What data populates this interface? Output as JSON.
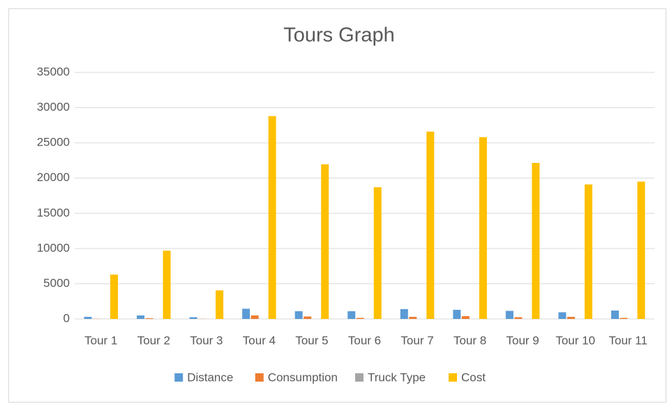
{
  "chart_data": {
    "type": "bar",
    "title": "Tours Graph",
    "categories": [
      "Tour 1",
      "Tour 2",
      "Tour 3",
      "Tour 4",
      "Tour 5",
      "Tour 6",
      "Tour 7",
      "Tour 8",
      "Tour 9",
      "Tour 10",
      "Tour 11"
    ],
    "series": [
      {
        "name": "Distance",
        "color": "#5b9bd5",
        "values": [
          300,
          500,
          250,
          1450,
          1100,
          1100,
          1400,
          1300,
          1150,
          950,
          1200
        ]
      },
      {
        "name": "Consumption",
        "color": "#ed7d31",
        "values": [
          20,
          100,
          20,
          500,
          350,
          150,
          300,
          400,
          250,
          300,
          150
        ]
      },
      {
        "name": "Truck Type",
        "color": "#a5a5a5",
        "values": [
          2,
          2,
          2,
          2,
          2,
          2,
          2,
          2,
          2,
          2,
          2
        ]
      },
      {
        "name": "Cost",
        "color": "#ffc000",
        "values": [
          6300,
          9700,
          4050,
          28800,
          21950,
          18700,
          26600,
          25800,
          22150,
          19100,
          19500
        ]
      }
    ],
    "ylim": [
      0,
      35000
    ],
    "yticks": [
      0,
      5000,
      10000,
      15000,
      20000,
      25000,
      30000,
      35000
    ],
    "grid": true,
    "legend": "bottom"
  }
}
